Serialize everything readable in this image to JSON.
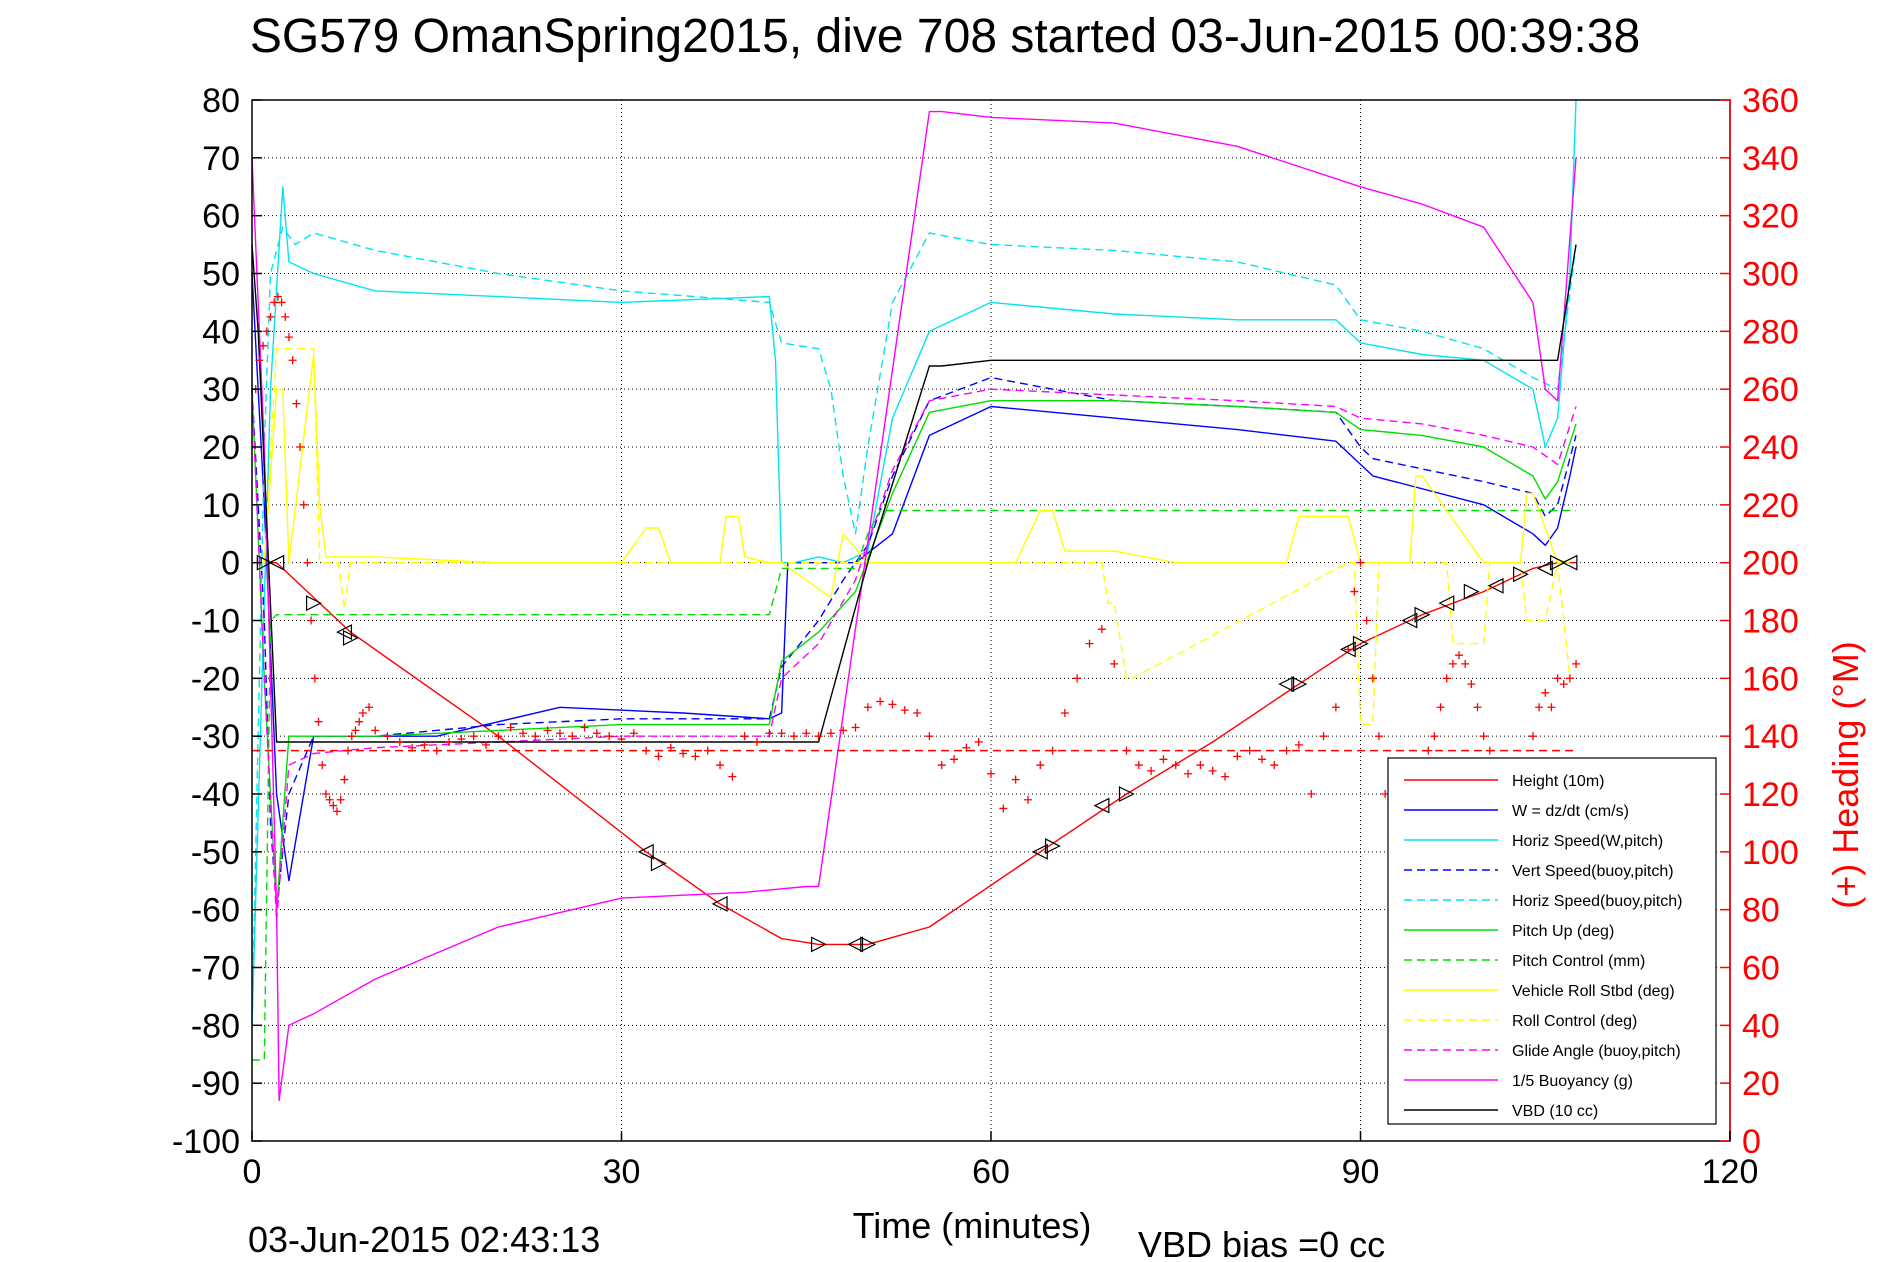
{
  "chart_data": {
    "type": "line",
    "title": "SG579 OmanSpring2015, dive 708 started 03-Jun-2015 00:39:38",
    "xlabel": "Time (minutes)",
    "ylabel": "",
    "y2label": "(+) Heading (°M)",
    "xlim": [
      0,
      120
    ],
    "ylim": [
      -100,
      80
    ],
    "y2lim": [
      0,
      360
    ],
    "x_ticks": [
      "0",
      "30",
      "60",
      "90",
      "120"
    ],
    "y_ticks": [
      "80",
      "70",
      "60",
      "50",
      "40",
      "30",
      "20",
      "10",
      "0",
      "-10",
      "-20",
      "-30",
      "-40",
      "-50",
      "-60",
      "-70",
      "-80",
      "-90",
      "-100"
    ],
    "y2_ticks": [
      "360",
      "340",
      "320",
      "300",
      "280",
      "260",
      "240",
      "220",
      "200",
      "180",
      "160",
      "140",
      "120",
      "100",
      "80",
      "60",
      "40",
      "20",
      "0"
    ],
    "grid": true,
    "legend_position": "bottom-right",
    "footer_left": "03-Jun-2015 02:43:13",
    "footer_right": "VBD bias =0 cc",
    "series": [
      {
        "name": "Height (10m)",
        "color": "#ff0000",
        "style": "solid",
        "axis": "left",
        "x": [
          0.5,
          2,
          8,
          20,
          32,
          38,
          43,
          46,
          50,
          55,
          64,
          71,
          78,
          85,
          90,
          95,
          100,
          104,
          106,
          107.5
        ],
        "y": [
          0,
          0,
          -12,
          -30,
          -50,
          -59,
          -65,
          -66,
          -66,
          -63,
          -50,
          -40,
          -31,
          -21,
          -14,
          -9,
          -5,
          -1,
          0,
          0
        ]
      },
      {
        "name": "W = dz/dt (cm/s)",
        "color": "#0000ff",
        "style": "solid",
        "axis": "left",
        "x": [
          0,
          1,
          2,
          3,
          5,
          8,
          15,
          25,
          35,
          42,
          43,
          43.5,
          46,
          49,
          52,
          55,
          60,
          70,
          80,
          88,
          90,
          91,
          100,
          104,
          105,
          106,
          107,
          107.5
        ],
        "y": [
          50,
          10,
          -40,
          -55,
          -30,
          -30,
          -30,
          -25,
          -26,
          -27,
          -26,
          0,
          0,
          0,
          5,
          22,
          27,
          25,
          23,
          21,
          17,
          15,
          10,
          5,
          3,
          6,
          15,
          20
        ]
      },
      {
        "name": "Horiz Speed(W,pitch)",
        "color": "#00e5ee",
        "style": "solid",
        "axis": "left",
        "x": [
          0,
          1.5,
          2.5,
          3,
          5,
          10,
          20,
          30,
          42,
          42.5,
          43,
          44,
          46,
          48,
          50,
          52,
          55,
          60,
          70,
          80,
          88,
          90,
          95,
          100,
          104,
          105,
          106,
          107,
          107.5
        ],
        "y": [
          -80,
          30,
          65,
          52,
          50,
          47,
          46,
          45,
          46,
          35,
          0,
          0,
          1,
          0,
          2,
          25,
          40,
          45,
          43,
          42,
          42,
          38,
          36,
          35,
          30,
          20,
          25,
          50,
          80
        ]
      },
      {
        "name": "Vert Speed(buoy,pitch)",
        "color": "#0000ff",
        "style": "dashed",
        "axis": "left",
        "x": [
          0,
          1,
          1.5,
          2,
          3,
          5,
          10,
          20,
          30,
          42,
          43,
          46,
          48,
          50,
          52,
          55,
          60,
          70,
          80,
          88,
          90,
          91,
          100,
          104,
          105,
          106,
          107.5
        ],
        "y": [
          30,
          -10,
          -45,
          -60,
          -40,
          -30,
          -30,
          -28,
          -27,
          -27,
          -18,
          -10,
          -3,
          3,
          15,
          28,
          32,
          28,
          27,
          26,
          20,
          18,
          14,
          12,
          8,
          10,
          22
        ]
      },
      {
        "name": "Horiz Speed(buoy,pitch)",
        "color": "#00e5ee",
        "style": "dashed",
        "axis": "left",
        "x": [
          0,
          1,
          1.5,
          2.5,
          3.5,
          5,
          10,
          20,
          30,
          42,
          43,
          46,
          47,
          48,
          49,
          50,
          52,
          55,
          60,
          70,
          80,
          88,
          90,
          95,
          100,
          104,
          106,
          107.5
        ],
        "y": [
          -80,
          20,
          50,
          58,
          55,
          57,
          54,
          50,
          47,
          45,
          38,
          37,
          30,
          15,
          5,
          20,
          45,
          57,
          55,
          54,
          52,
          48,
          42,
          40,
          37,
          32,
          30,
          55
        ]
      },
      {
        "name": "Pitch Up (deg)",
        "color": "#00dd00",
        "style": "solid",
        "axis": "left",
        "x": [
          0,
          1,
          2,
          3,
          5,
          10,
          20,
          30,
          42,
          43,
          46,
          49,
          52,
          55,
          60,
          70,
          80,
          88,
          90,
          95,
          100,
          104,
          105,
          106,
          107.5
        ],
        "y": [
          30,
          -20,
          -60,
          -30,
          -30,
          -30,
          -29,
          -28,
          -28,
          -17,
          -12,
          -5,
          12,
          26,
          28,
          28,
          27,
          26,
          23,
          22,
          20,
          15,
          11,
          14,
          24
        ]
      },
      {
        "name": "Pitch Control (mm)",
        "color": "#00dd00",
        "style": "dashed",
        "axis": "left",
        "x": [
          0,
          1,
          1.5,
          2,
          42,
          43,
          49,
          50,
          51,
          107.5
        ],
        "y": [
          -86,
          -86,
          -10,
          -9,
          -9,
          -1,
          -1,
          5,
          9,
          9
        ]
      },
      {
        "name": "Vehicle Roll Stbd (deg)",
        "color": "#ffff00",
        "style": "solid",
        "axis": "left",
        "x": [
          0,
          1,
          2,
          2.5,
          3,
          5,
          5.5,
          6,
          10,
          20,
          30,
          32,
          33,
          34,
          38,
          38.5,
          39.5,
          40,
          42,
          43,
          47,
          48,
          50,
          55,
          62,
          64,
          65,
          66,
          70,
          75,
          84,
          85,
          89,
          90,
          91,
          92,
          94,
          94.5,
          95,
          100,
          103,
          103.5,
          104,
          106,
          107
        ],
        "y": [
          0,
          0,
          30,
          30,
          0,
          36,
          10,
          1,
          1,
          0,
          0,
          6,
          6,
          0,
          0,
          8,
          8,
          1,
          0,
          0,
          -6,
          5,
          0,
          0,
          0,
          9,
          9,
          2,
          2,
          0,
          0,
          8,
          8,
          0,
          0,
          0,
          0,
          15,
          15,
          0,
          0,
          12,
          12,
          0,
          0
        ]
      },
      {
        "name": "Roll Control (deg)",
        "color": "#ffff00",
        "style": "dashed",
        "axis": "left",
        "x": [
          0,
          1,
          2,
          2.5,
          5,
          5.5,
          6,
          7,
          7.5,
          8,
          30,
          40,
          42,
          43,
          48,
          49,
          69,
          69.5,
          70,
          71,
          71.5,
          89,
          89.5,
          90,
          91,
          91.5,
          97,
          97.5,
          100,
          100.5,
          103,
          103.5,
          105,
          106,
          107
        ],
        "y": [
          0,
          0,
          37,
          37,
          37,
          0,
          0,
          0,
          -8,
          0,
          0,
          0,
          0,
          0,
          0,
          0,
          0,
          -7,
          -7,
          -20,
          -20,
          0,
          0,
          -28,
          -28,
          0,
          0,
          -14,
          -14,
          0,
          0,
          -10,
          -10,
          0,
          -20
        ]
      },
      {
        "name": "Glide Angle (buoy,pitch)",
        "color": "#ff00ff",
        "style": "dashed",
        "axis": "left",
        "x": [
          0,
          1,
          2,
          3,
          5,
          10,
          20,
          30,
          42,
          43,
          46,
          49,
          52,
          55,
          60,
          70,
          80,
          88,
          90,
          95,
          100,
          104,
          106,
          107.5
        ],
        "y": [
          30,
          -20,
          -62,
          -35,
          -33,
          -32,
          -31,
          -30,
          -30,
          -20,
          -14,
          -3,
          16,
          28,
          30,
          29,
          28,
          27,
          25,
          24,
          22,
          20,
          17,
          27
        ]
      },
      {
        "name": "1/5 Buoyancy (g)",
        "color": "#ff00ff",
        "style": "solid",
        "axis": "left",
        "x": [
          0,
          1,
          2,
          2.2,
          3,
          5,
          10,
          20,
          30,
          40,
          45,
          46,
          55,
          56,
          60,
          70,
          80,
          90,
          95,
          100,
          104,
          105,
          106,
          107.5
        ],
        "y": [
          70,
          20,
          -60,
          -93,
          -80,
          -78,
          -72,
          -63,
          -58,
          -57,
          -56,
          -56,
          78,
          78,
          77,
          76,
          72,
          65,
          62,
          58,
          45,
          30,
          28,
          70
        ]
      },
      {
        "name": "VBD (10 cc)",
        "color": "#000000",
        "style": "solid",
        "axis": "left",
        "x": [
          0,
          0.5,
          2,
          3,
          10,
          20,
          30,
          40,
          46,
          50,
          55,
          56,
          60,
          70,
          80,
          90,
          100,
          105,
          106,
          107.5
        ],
        "y": [
          55,
          40,
          -31,
          -31,
          -31,
          -31,
          -31,
          -31,
          -31,
          0,
          34,
          34,
          35,
          35,
          35,
          35,
          35,
          35,
          35,
          55
        ]
      }
    ],
    "heading": {
      "color": "#ff0000",
      "marker": "+",
      "axis": "right",
      "x": [
        0.3,
        0.6,
        0.9,
        1.2,
        1.5,
        1.8,
        2.1,
        2.4,
        2.7,
        3.0,
        3.3,
        3.6,
        3.9,
        4.2,
        4.5,
        4.8,
        5.1,
        5.4,
        5.7,
        6.0,
        6.3,
        6.6,
        6.9,
        7.2,
        7.5,
        7.8,
        8.1,
        8.4,
        8.7,
        9.0,
        9.5,
        10,
        11,
        12,
        13,
        14,
        15,
        16,
        17,
        18,
        19,
        20,
        21,
        22,
        23,
        24,
        25,
        26,
        27,
        28,
        29,
        30,
        31,
        32,
        33,
        34,
        35,
        36,
        37,
        38,
        39,
        40,
        41,
        42,
        43,
        44,
        45,
        46,
        47,
        48,
        49,
        50,
        51,
        52,
        53,
        54,
        55,
        56,
        57,
        58,
        59,
        60,
        61,
        62,
        63,
        64,
        65,
        66,
        67,
        68,
        69,
        70,
        71,
        72,
        73,
        74,
        75,
        76,
        77,
        78,
        79,
        80,
        81,
        82,
        83,
        84,
        85,
        86,
        87,
        88,
        89,
        89.5,
        90,
        90.5,
        91,
        91.5,
        92,
        92.5,
        93,
        94,
        95,
        95.5,
        96,
        96.5,
        97,
        97.5,
        98,
        98.5,
        99,
        99.5,
        100,
        100.5,
        104,
        104.5,
        105,
        105.5,
        106,
        106.5,
        107,
        107.5
      ],
      "y": [
        260,
        270,
        275,
        280,
        285,
        290,
        292,
        290,
        285,
        278,
        270,
        255,
        240,
        220,
        200,
        180,
        160,
        145,
        130,
        120,
        118,
        116,
        114,
        118,
        125,
        135,
        140,
        142,
        145,
        148,
        150,
        142,
        140,
        138,
        136,
        137,
        135,
        138,
        139,
        140,
        137,
        140,
        143,
        141,
        140,
        142,
        141,
        140,
        143,
        141,
        140,
        139,
        141,
        135,
        133,
        136,
        134,
        133,
        135,
        130,
        126,
        140,
        138,
        141,
        141,
        140,
        141,
        140,
        141,
        142,
        143,
        150,
        152,
        151,
        149,
        148,
        140,
        130,
        132,
        136,
        138,
        127,
        115,
        125,
        118,
        130,
        135,
        148,
        160,
        172,
        177,
        165,
        135,
        130,
        128,
        132,
        130,
        127,
        130,
        128,
        126,
        133,
        135,
        132,
        130,
        135,
        137,
        120,
        140,
        150,
        170,
        190,
        200,
        180,
        160,
        140,
        120,
        105,
        110,
        120,
        130,
        135,
        140,
        150,
        160,
        165,
        168,
        165,
        158,
        150,
        140,
        135,
        140,
        150,
        155,
        150,
        160,
        158,
        160,
        165
      ]
    },
    "heading_ref": {
      "color": "#ff0000",
      "style": "dashed",
      "axis": "right",
      "x": [
        0,
        107.5
      ],
      "y": [
        135,
        135
      ]
    },
    "markers": {
      "color": "#000000",
      "x": [
        1,
        2,
        5,
        7.5,
        8,
        32,
        33,
        38,
        46,
        49,
        50,
        64,
        65,
        69,
        71,
        84,
        85,
        89,
        90,
        94,
        95,
        97,
        99,
        101,
        103,
        105,
        106,
        107
      ],
      "y": [
        0,
        0,
        -7,
        -12,
        -13,
        -50,
        -52,
        -59,
        -66,
        -66,
        -66,
        -50,
        -49,
        -42,
        -40,
        -21,
        -21,
        -15,
        -14,
        -10,
        -9,
        -7,
        -5,
        -4,
        -2,
        -1,
        0,
        0
      ]
    }
  }
}
